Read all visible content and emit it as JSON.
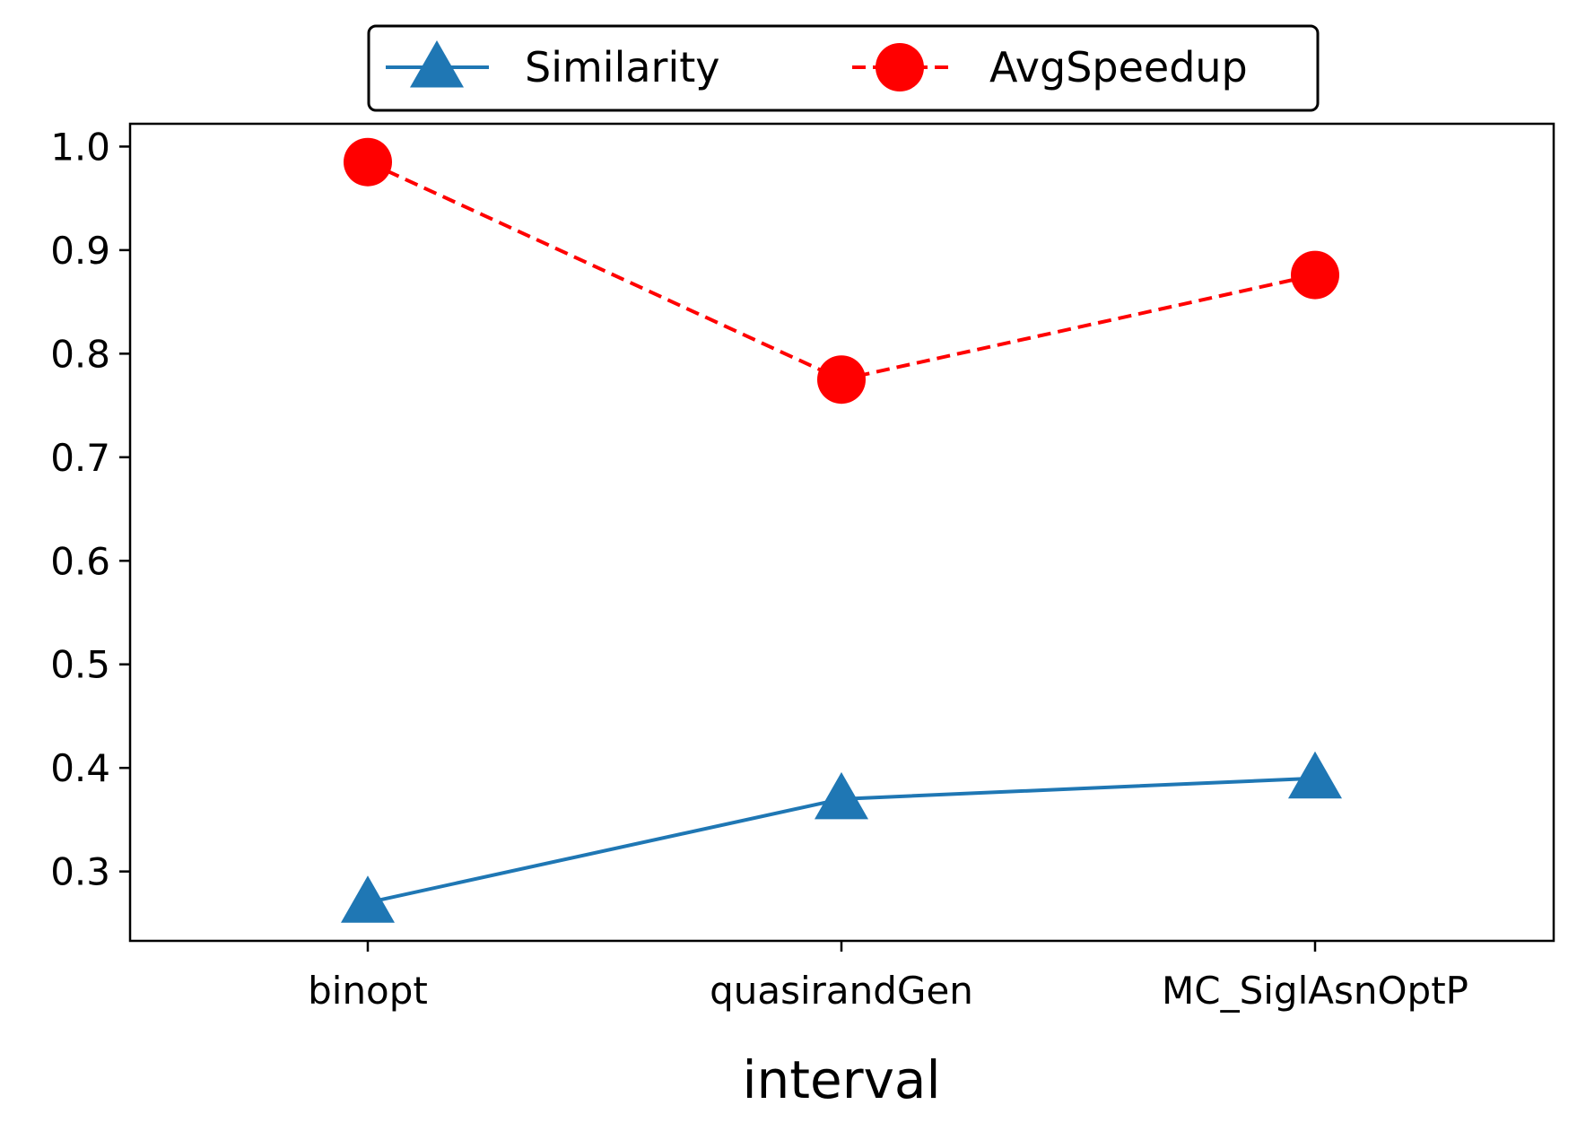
{
  "chart_data": {
    "type": "line",
    "categories": [
      "binopt",
      "quasirandGen",
      "MC_SiglAsnOptP"
    ],
    "series": [
      {
        "name": "Similarity",
        "values": [
          0.27,
          0.37,
          0.39
        ],
        "color": "#1f77b4",
        "line_style": "solid",
        "marker": "triangle"
      },
      {
        "name": "AvgSpeedup",
        "values": [
          0.985,
          0.775,
          0.876
        ],
        "color": "#ff0000",
        "line_style": "dashed",
        "marker": "circle"
      }
    ],
    "title": "",
    "xlabel": "interval",
    "ylabel": "",
    "ylim": [
      0.233,
      1.022
    ],
    "yticks": [
      "0.3",
      "0.4",
      "0.5",
      "0.6",
      "0.7",
      "0.8",
      "0.9",
      "1.0"
    ],
    "grid": false,
    "legend_position": "top-center"
  }
}
